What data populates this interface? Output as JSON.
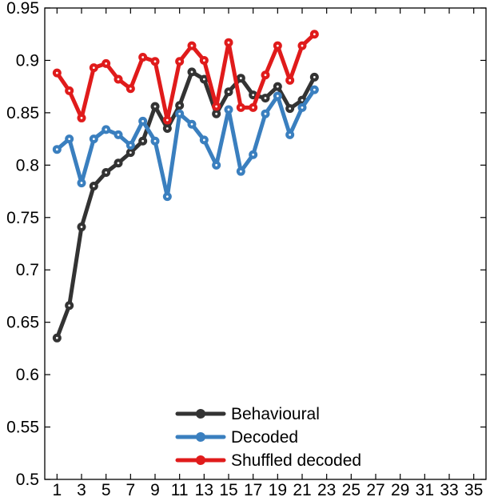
{
  "chart_data": {
    "type": "line",
    "title": "",
    "xlabel": "",
    "ylabel": "",
    "xlim": [
      0,
      36
    ],
    "ylim": [
      0.5,
      0.95
    ],
    "xticks": [
      1,
      3,
      5,
      7,
      9,
      11,
      13,
      15,
      17,
      19,
      21,
      23,
      25,
      27,
      29,
      31,
      33,
      35
    ],
    "yticks": [
      0.5,
      0.55,
      0.6,
      0.65,
      0.7,
      0.75,
      0.8,
      0.85,
      0.9,
      0.95
    ],
    "xtick_labels": [
      "1",
      "3",
      "5",
      "7",
      "9",
      "11",
      "13",
      "15",
      "17",
      "19",
      "21",
      "23",
      "25",
      "27",
      "29",
      "31",
      "33",
      "35"
    ],
    "ytick_labels": [
      "0.5",
      "0.55",
      "0.6",
      "0.65",
      "0.7",
      "0.75",
      "0.8",
      "0.85",
      "0.9",
      "0.95"
    ],
    "grid": false,
    "legend_position": "bottom-center",
    "x": [
      1,
      2,
      3,
      4,
      5,
      6,
      7,
      8,
      9,
      10,
      11,
      12,
      13,
      14,
      15,
      16,
      17,
      18,
      19,
      20,
      21,
      22
    ],
    "series": [
      {
        "name": "Behavioural",
        "color": "#333333",
        "values": [
          0.635,
          0.666,
          0.741,
          0.78,
          0.793,
          0.802,
          0.812,
          0.823,
          0.856,
          0.835,
          0.857,
          0.889,
          0.882,
          0.849,
          0.87,
          0.883,
          0.867,
          0.864,
          0.875,
          0.854,
          0.862,
          0.884
        ]
      },
      {
        "name": "Decoded",
        "color": "#3a7fbf",
        "values": [
          0.815,
          0.825,
          0.783,
          0.825,
          0.834,
          0.829,
          0.819,
          0.842,
          0.823,
          0.77,
          0.849,
          0.839,
          0.824,
          0.8,
          0.853,
          0.794,
          0.81,
          0.849,
          0.866,
          0.829,
          0.855,
          0.872
        ]
      },
      {
        "name": "Shuffled decoded",
        "color": "#e01b1b",
        "values": [
          0.888,
          0.871,
          0.845,
          0.893,
          0.897,
          0.882,
          0.873,
          0.903,
          0.899,
          0.843,
          0.899,
          0.914,
          0.9,
          0.856,
          0.917,
          0.855,
          0.855,
          0.886,
          0.914,
          0.881,
          0.914,
          0.925
        ]
      }
    ]
  }
}
